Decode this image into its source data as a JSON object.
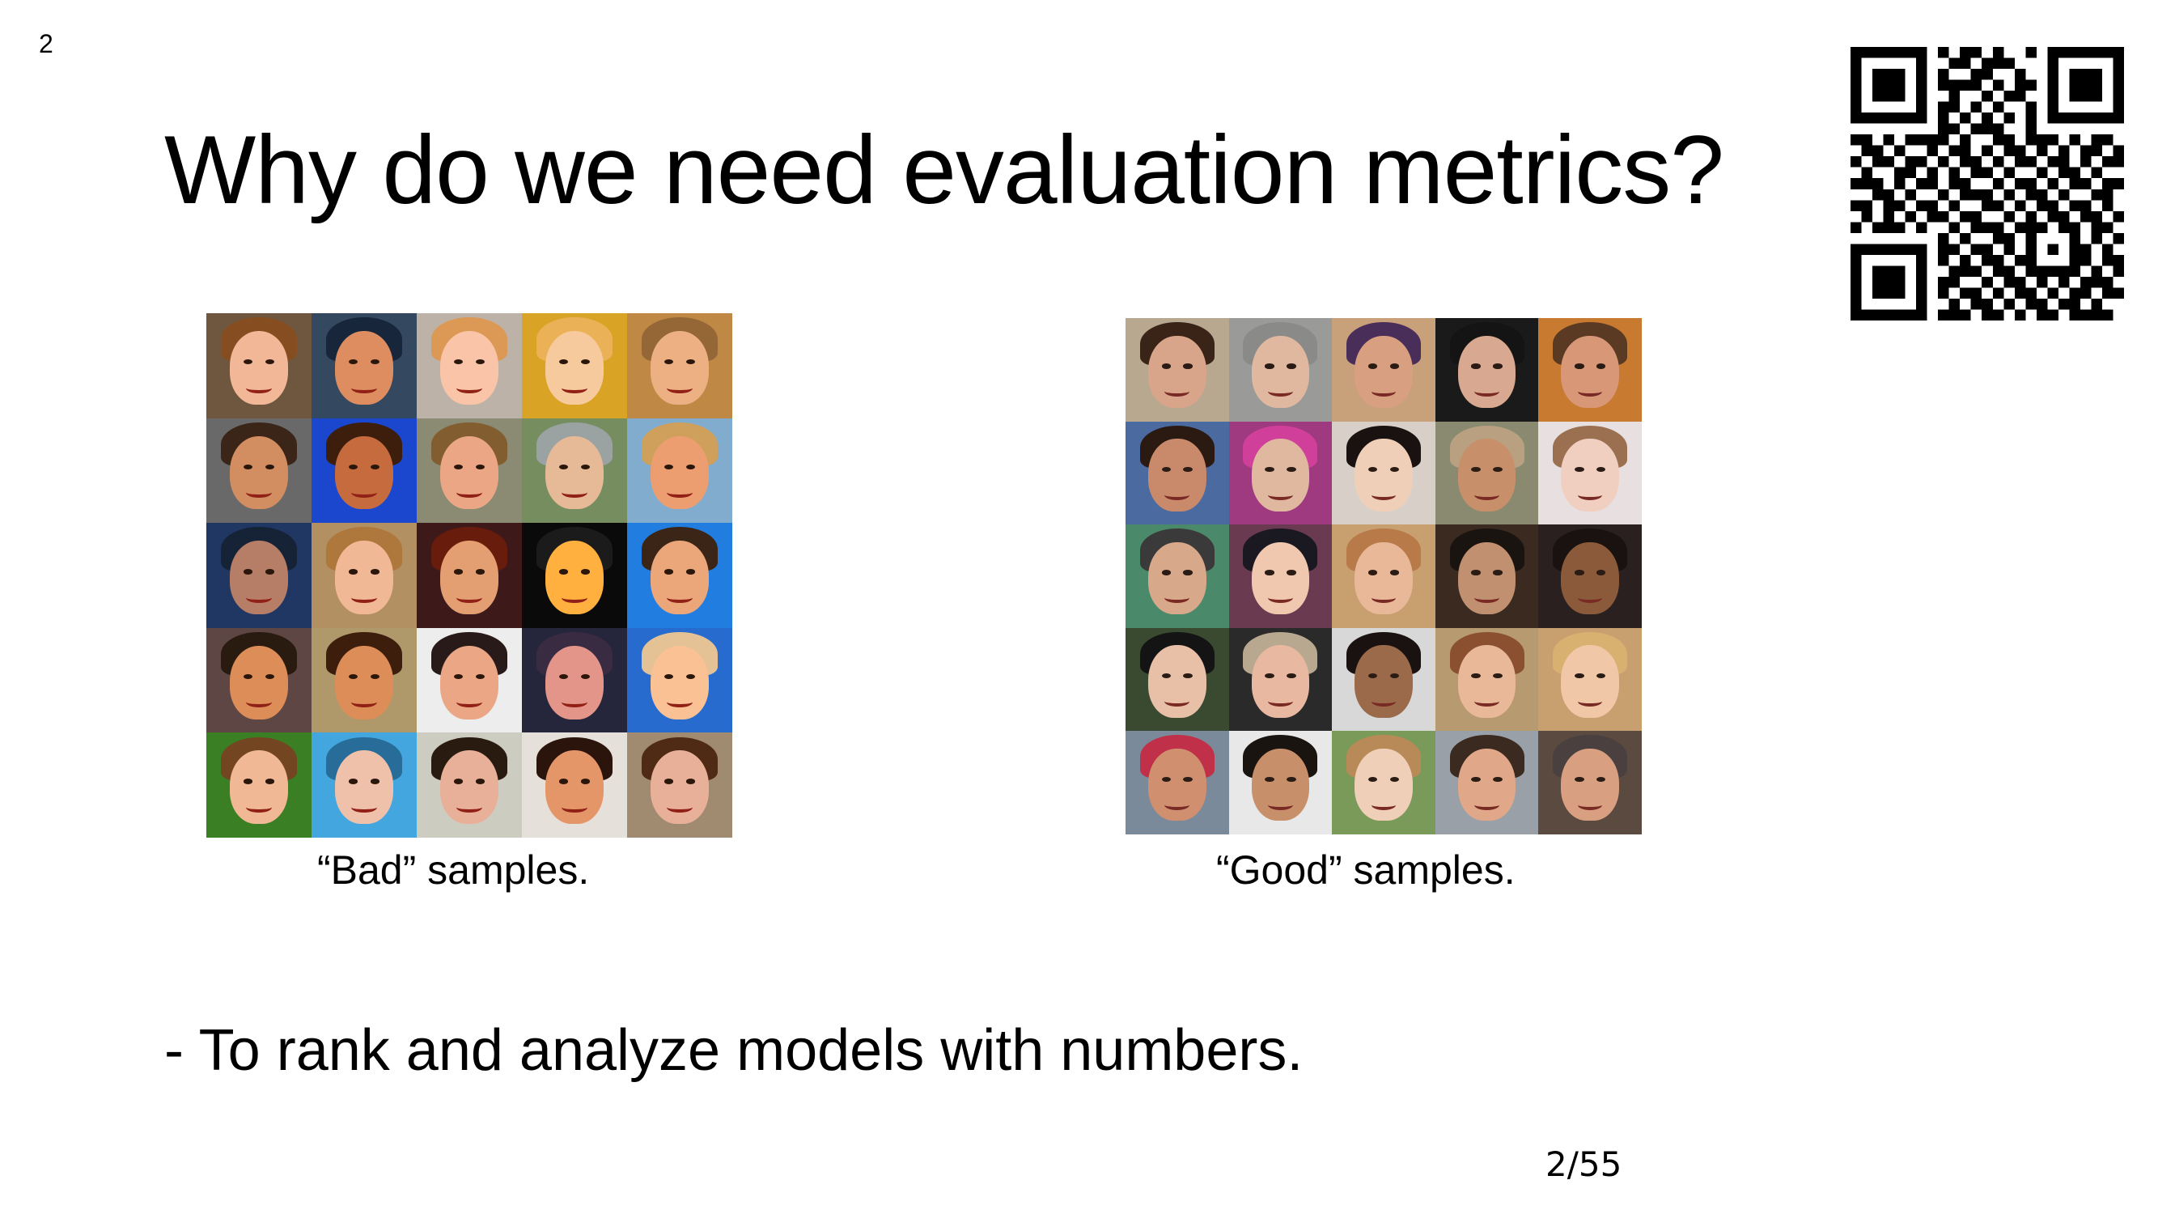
{
  "slide": {
    "corner_number": "2",
    "title": "Why do we need evaluation metrics?",
    "bullet": "- To rank and analyze models with numbers.",
    "page_number": "2/55"
  },
  "samples": {
    "bad": {
      "caption": "“Bad” samples.",
      "tiles": [
        {
          "bg": "#6a5a48",
          "skin": "#e0b7a0",
          "hair": "#7a5232"
        },
        {
          "bg": "#3c4a5a",
          "skin": "#c89070",
          "hair": "#1f2a38"
        },
        {
          "bg": "#b8b0a8",
          "skin": "#e9c3b0",
          "hair": "#c99a6a"
        },
        {
          "bg": "#c8a24a",
          "skin": "#e8c8a8",
          "hair": "#d9b070"
        },
        {
          "bg": "#b08a5a",
          "skin": "#dab090",
          "hair": "#8a6a48"
        },
        {
          "bg": "#6a6a6a",
          "skin": "#c09070",
          "hair": "#3a2a22"
        },
        {
          "bg": "#2a4aa8",
          "skin": "#b07050",
          "hair": "#3a2418"
        },
        {
          "bg": "#8a8a7a",
          "skin": "#d8a890",
          "hair": "#7a6040"
        },
        {
          "bg": "#7a8a6a",
          "skin": "#d8b8a0",
          "hair": "#9aa0a0"
        },
        {
          "bg": "#8aa8c0",
          "skin": "#d8a080",
          "hair": "#c0a070"
        },
        {
          "bg": "#2a3a5a",
          "skin": "#a88070",
          "hair": "#1e2634"
        },
        {
          "bg": "#a89070",
          "skin": "#e0b8a0",
          "hair": "#a07a50"
        },
        {
          "bg": "#3a2020",
          "skin": "#d0a080",
          "hair": "#5a2418"
        },
        {
          "bg": "#101010",
          "skin": "#e8b060",
          "hair": "#202020"
        },
        {
          "bg": "#3a7ac0",
          "skin": "#d8a888",
          "hair": "#3a2a20"
        },
        {
          "bg": "#5a4a48",
          "skin": "#c8906a",
          "hair": "#2a2018"
        },
        {
          "bg": "#a89878",
          "skin": "#c8906a",
          "hair": "#3a2418"
        },
        {
          "bg": "#e8e8e8",
          "skin": "#d8a890",
          "hair": "#2a2020"
        },
        {
          "bg": "#2a2a3a",
          "skin": "#d09890",
          "hair": "#3a3040"
        },
        {
          "bg": "#3a6ab0",
          "skin": "#e8c0a0",
          "hair": "#d8c0a0"
        },
        {
          "bg": "#4a7a3a",
          "skin": "#e0b8a0",
          "hair": "#6a4a30"
        },
        {
          "bg": "#5aa0c8",
          "skin": "#e0c0b0",
          "hair": "#3a6a8a"
        },
        {
          "bg": "#c8c8c0",
          "skin": "#d8b0a0",
          "hair": "#2a2018"
        },
        {
          "bg": "#e0dcd8",
          "skin": "#d09878",
          "hair": "#2a1a14"
        },
        {
          "bg": "#9a8a78",
          "skin": "#d8b0a0",
          "hair": "#4a3020"
        }
      ]
    },
    "good": {
      "caption": "“Good” samples.",
      "tiles": [
        {
          "bg": "#b8a890",
          "skin": "#d8a48a",
          "hair": "#3a2418"
        },
        {
          "bg": "#9a9a98",
          "skin": "#e0b8a0",
          "hair": "#8a8a88"
        },
        {
          "bg": "#c8a07a",
          "skin": "#d8a080",
          "hair": "#4a2e5a"
        },
        {
          "bg": "#1a1a1a",
          "skin": "#d8a890",
          "hair": "#141414"
        },
        {
          "bg": "#c87a30",
          "skin": "#d89878",
          "hair": "#5a3a22"
        },
        {
          "bg": "#4a6aa0",
          "skin": "#c88a6a",
          "hair": "#2a1a12"
        },
        {
          "bg": "#a03a80",
          "skin": "#e0b8a0",
          "hair": "#d0409a"
        },
        {
          "bg": "#d8d0c8",
          "skin": "#f0cfb8",
          "hair": "#1a1210"
        },
        {
          "bg": "#8a8a70",
          "skin": "#c8906a",
          "hair": "#b8a080"
        },
        {
          "bg": "#e8e0e0",
          "skin": "#f0cfc0",
          "hair": "#9a7050"
        },
        {
          "bg": "#4a8a6a",
          "skin": "#d8a88a",
          "hair": "#3a3a3a"
        },
        {
          "bg": "#6a3a50",
          "skin": "#f0c8b0",
          "hair": "#1a1820"
        },
        {
          "bg": "#c8a070",
          "skin": "#e8b898",
          "hair": "#b87a48"
        },
        {
          "bg": "#3a2a20",
          "skin": "#c09070",
          "hair": "#1a1410"
        },
        {
          "bg": "#2a2020",
          "skin": "#8a5a3a",
          "hair": "#1a1210"
        },
        {
          "bg": "#3a4a30",
          "skin": "#e8c0a8",
          "hair": "#141414"
        },
        {
          "bg": "#2a2a2a",
          "skin": "#e8b8a0",
          "hair": "#b8a890"
        },
        {
          "bg": "#d8d8d8",
          "skin": "#9a6a4a",
          "hair": "#1a1210"
        },
        {
          "bg": "#b89a70",
          "skin": "#e8b898",
          "hair": "#8a5030"
        },
        {
          "bg": "#c8a070",
          "skin": "#f0c8a8",
          "hair": "#d8b070"
        },
        {
          "bg": "#7a8a9a",
          "skin": "#d09070",
          "hair": "#c03048"
        },
        {
          "bg": "#e8e8e8",
          "skin": "#c8906a",
          "hair": "#1a1410"
        },
        {
          "bg": "#7a9a5a",
          "skin": "#f0cfb8",
          "hair": "#b88a58"
        },
        {
          "bg": "#9aa0a8",
          "skin": "#e0a888",
          "hair": "#3a2a20"
        },
        {
          "bg": "#5a4a40",
          "skin": "#d8a080",
          "hair": "#4a4040"
        }
      ]
    }
  },
  "qr_code": {
    "icon": "qr-code-icon",
    "color": "#000000",
    "matrix": [
      "1111111010110100101111111",
      "1000001001101110001000001",
      "1011101010011001001011101",
      "1011101011110101101011101",
      "1011101001001011001011101",
      "1000001011010100101000001",
      "1111111010101010101111111",
      "0000000011011100100000000",
      "1101011110100110111010110",
      "0110100101101011010101101",
      "1011011010110101101101011",
      "0100110101011010010110100",
      "1110101101100101101011011",
      "0011010010111010110100110",
      "1101101101001101011011010",
      "0101010110110010101101101",
      "1011101001011101110110110",
      "0000000010100110100010101",
      "1111111011011010101011010",
      "1000001010101101100011011",
      "1011101001110110111110101",
      "1011101011001011010101110",
      "1011101010110101101011011",
      "1000001001011010110110100",
      "1111111011101101011011110"
    ]
  }
}
